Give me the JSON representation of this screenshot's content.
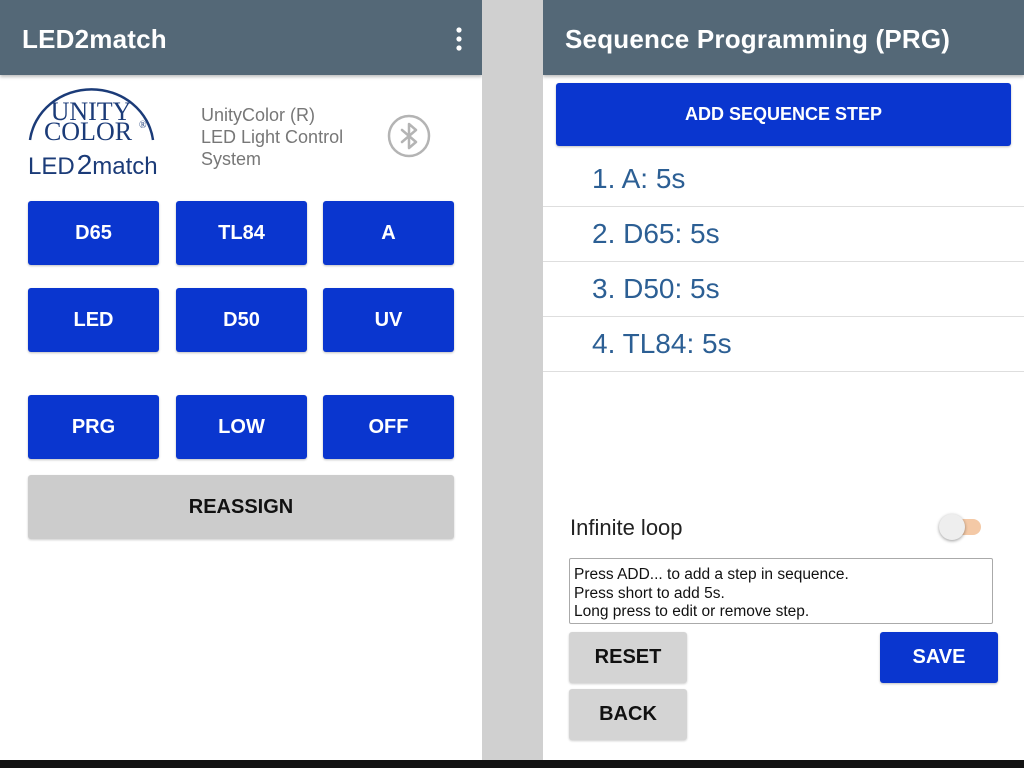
{
  "left_screen": {
    "app_title": "LED2match",
    "overflow_icon": "overflow-menu-icon",
    "logo": {
      "line1": "UNITY",
      "line2": "COLOR",
      "reg": "®",
      "brand_prefix": "LED",
      "brand_digit": "2",
      "brand_suffix": "match"
    },
    "subtitle": [
      "UnityColor (R)",
      "LED Light Control",
      "System"
    ],
    "bluetooth_icon": "bluetooth-icon",
    "buttons": [
      "D65",
      "TL84",
      "A",
      "LED",
      "D50",
      "UV",
      "PRG",
      "LOW",
      "OFF"
    ],
    "reassign_label": "REASSIGN"
  },
  "right_screen": {
    "title": "Sequence Programming (PRG)",
    "add_step_label": "ADD SEQUENCE STEP",
    "steps": [
      "1. A: 5s",
      "2. D65: 5s",
      "3. D50: 5s",
      "4. TL84: 5s"
    ],
    "loop_label": "Infinite loop",
    "loop_enabled": false,
    "help_lines": [
      "Press ADD... to add a step in sequence.",
      "Press short to add 5s.",
      "Long press to edit or remove step."
    ],
    "reset_label": "RESET",
    "save_label": "SAVE",
    "back_label": "BACK"
  },
  "colors": {
    "appbar": "#546877",
    "primary_button": "#0a36cf",
    "secondary_button": "#cccccc",
    "step_text": "#2c5f94",
    "logo": "#1b3b78"
  }
}
